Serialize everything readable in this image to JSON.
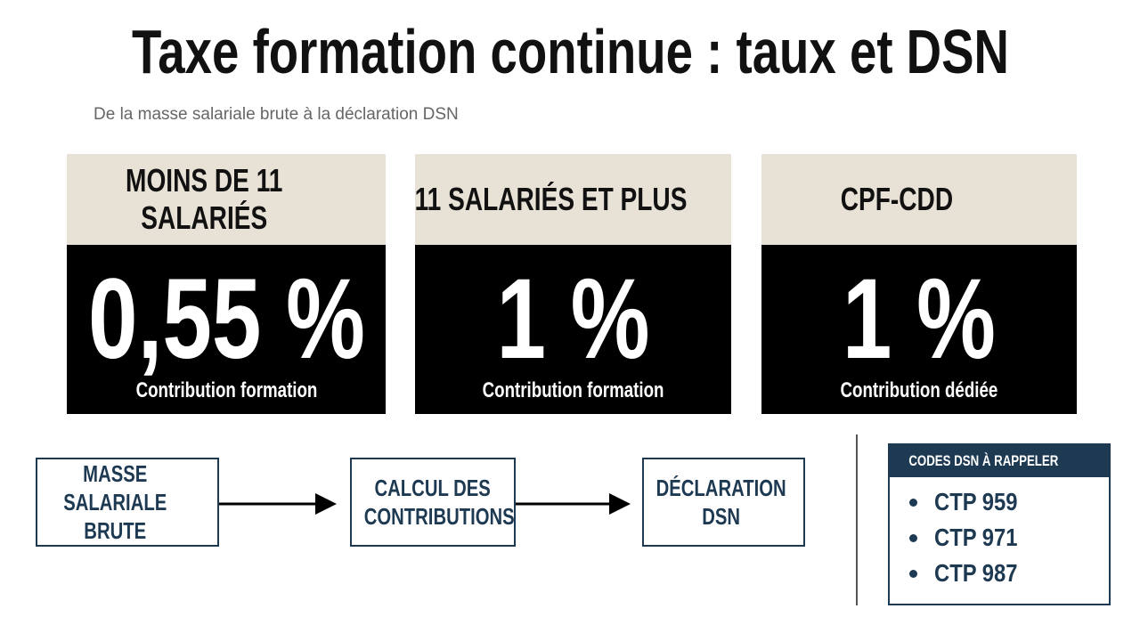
{
  "header": {
    "title": "Taxe formation continue : taux et DSN",
    "subtitle": "De la masse salariale brute à la déclaration DSN"
  },
  "cards": [
    {
      "label": "MOINS DE 11 SALARIÉS",
      "rate": "0,55 %",
      "caption": "Contribution formation"
    },
    {
      "label": "11 SALARIÉS ET PLUS",
      "rate": "1 %",
      "caption": "Contribution formation"
    },
    {
      "label": "CPF-CDD",
      "rate": "1 %",
      "caption": "Contribution dédiée"
    }
  ],
  "flow": [
    "MASSE SALARIALE BRUTE",
    "CALCUL DES CONTRIBUTIONS",
    "DÉCLARATION DSN"
  ],
  "codes": {
    "title": "CODES DSN À RAPPELER",
    "items": [
      "CTP 959",
      "CTP 971",
      "CTP 987"
    ]
  }
}
